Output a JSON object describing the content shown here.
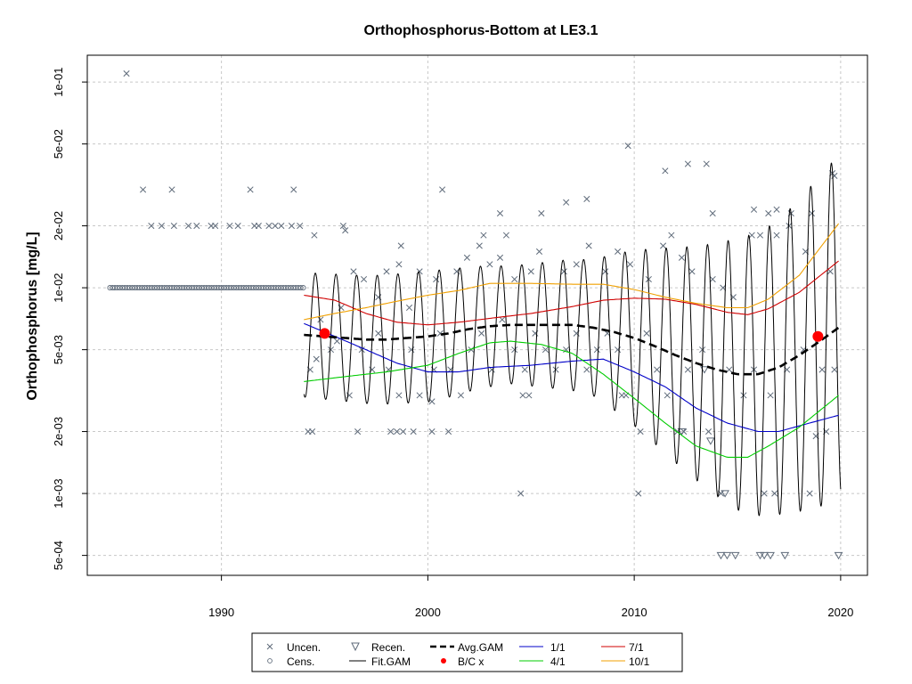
{
  "chart_data": {
    "type": "line",
    "title": "Orthophosphorus-Bottom at LE3.1",
    "xlabel": "",
    "ylabel": "Orthophosphorus [mg/L]",
    "y_scale": "log",
    "xlim": [
      1983.5,
      2021.3
    ],
    "ylim": [
      0.0004,
      0.135
    ],
    "x_ticks": [
      1990,
      2000,
      2010,
      2020
    ],
    "y_ticks": [
      0.1,
      0.05,
      0.02,
      0.01,
      0.005,
      0.002,
      0.001,
      0.0005
    ],
    "y_tick_labels": [
      "1e-01",
      "5e-02",
      "2e-02",
      "1e-02",
      "5e-03",
      "2e-03",
      "1e-03",
      "5e-04"
    ],
    "grid": true,
    "legend_placement": "bottom",
    "legend": {
      "uncen": "Uncen.",
      "cens": "Cens.",
      "recen": "Recen.",
      "fitgam": "Fit.GAM",
      "avggam": "Avg.GAM",
      "bc": "B/C x",
      "m1": "1/1",
      "m4": "4/1",
      "m7": "7/1",
      "m10": "10/1"
    },
    "colors": {
      "points": "#5f6b7a",
      "fit": "#000000",
      "avg": "#000000",
      "bc": "#ff0000",
      "m1": "#0000c8",
      "m4": "#00cc00",
      "m7": "#d00000",
      "m10": "#f0a000",
      "grid": "#c8c8c8"
    },
    "censored": {
      "x_start": 1984.6,
      "x_end": 1994.0,
      "step": 0.12,
      "value": 0.01
    },
    "uncensored": [
      [
        1985.4,
        0.11
      ],
      [
        1986.2,
        0.03
      ],
      [
        1987.6,
        0.03
      ],
      [
        1991.4,
        0.03
      ],
      [
        1993.5,
        0.03
      ],
      [
        2000.7,
        0.03
      ],
      [
        1986.6,
        0.02
      ],
      [
        1987.1,
        0.02
      ],
      [
        1987.7,
        0.02
      ],
      [
        1988.4,
        0.02
      ],
      [
        1988.8,
        0.02
      ],
      [
        1989.5,
        0.02
      ],
      [
        1989.7,
        0.02
      ],
      [
        1990.4,
        0.02
      ],
      [
        1990.8,
        0.02
      ],
      [
        1991.6,
        0.02
      ],
      [
        1991.8,
        0.02
      ],
      [
        1992.3,
        0.02
      ],
      [
        1992.6,
        0.02
      ],
      [
        1992.9,
        0.02
      ],
      [
        1993.4,
        0.02
      ],
      [
        1993.8,
        0.02
      ],
      [
        1994.5,
        0.018
      ],
      [
        1995.9,
        0.02
      ],
      [
        1996.0,
        0.019
      ],
      [
        1994.2,
        0.002
      ],
      [
        1994.4,
        0.002
      ],
      [
        1996.6,
        0.002
      ],
      [
        1998.2,
        0.002
      ],
      [
        1998.5,
        0.002
      ],
      [
        1998.8,
        0.002
      ],
      [
        1999.3,
        0.002
      ],
      [
        2000.2,
        0.002
      ],
      [
        2001.0,
        0.002
      ],
      [
        2000.2,
        0.0028
      ],
      [
        2004.9,
        0.003
      ],
      [
        2004.6,
        0.003
      ],
      [
        2009.6,
        0.003
      ],
      [
        2009.4,
        0.003
      ],
      [
        2010.3,
        0.002
      ],
      [
        2012.1,
        0.002
      ],
      [
        2012.4,
        0.002
      ],
      [
        2013.6,
        0.002
      ],
      [
        2004.5,
        0.001
      ],
      [
        2010.2,
        0.001
      ],
      [
        2014.2,
        0.001
      ],
      [
        2016.3,
        0.001
      ],
      [
        2016.8,
        0.001
      ],
      [
        2018.5,
        0.001
      ],
      [
        2019.3,
        0.002
      ],
      [
        2018.8,
        0.0019
      ],
      [
        1994.3,
        0.004
      ],
      [
        1994.6,
        0.0045
      ],
      [
        1995.3,
        0.005
      ],
      [
        1995.6,
        0.0055
      ],
      [
        1996.2,
        0.003
      ],
      [
        1996.8,
        0.005
      ],
      [
        1997.3,
        0.004
      ],
      [
        1997.6,
        0.006
      ],
      [
        1998.1,
        0.004
      ],
      [
        1998.6,
        0.003
      ],
      [
        1999.2,
        0.005
      ],
      [
        1999.6,
        0.003
      ],
      [
        2000.3,
        0.004
      ],
      [
        2000.6,
        0.006
      ],
      [
        2001.1,
        0.004
      ],
      [
        2001.6,
        0.003
      ],
      [
        2002.1,
        0.005
      ],
      [
        2002.6,
        0.006
      ],
      [
        2003.1,
        0.004
      ],
      [
        2003.6,
        0.007
      ],
      [
        2004.2,
        0.005
      ],
      [
        2004.7,
        0.004
      ],
      [
        2005.2,
        0.006
      ],
      [
        2005.7,
        0.005
      ],
      [
        2006.2,
        0.004
      ],
      [
        2006.7,
        0.005
      ],
      [
        2007.2,
        0.006
      ],
      [
        2007.7,
        0.004
      ],
      [
        2008.2,
        0.005
      ],
      [
        2008.7,
        0.006
      ],
      [
        2009.2,
        0.005
      ],
      [
        2010.6,
        0.006
      ],
      [
        2011.1,
        0.004
      ],
      [
        2011.6,
        0.003
      ],
      [
        2012.6,
        0.004
      ],
      [
        2013.3,
        0.005
      ],
      [
        2014.6,
        0.004
      ],
      [
        2015.3,
        0.003
      ],
      [
        2015.8,
        0.004
      ],
      [
        2016.6,
        0.003
      ],
      [
        2017.4,
        0.004
      ],
      [
        2018.2,
        0.005
      ],
      [
        2019.1,
        0.004
      ],
      [
        2019.7,
        0.004
      ],
      [
        1994.8,
        0.007
      ],
      [
        1995.8,
        0.008
      ],
      [
        1996.4,
        0.012
      ],
      [
        1996.9,
        0.011
      ],
      [
        1997.6,
        0.009
      ],
      [
        1998.0,
        0.012
      ],
      [
        1998.6,
        0.013
      ],
      [
        1999.1,
        0.008
      ],
      [
        1999.6,
        0.012
      ],
      [
        2000.4,
        0.011
      ],
      [
        2001.4,
        0.012
      ],
      [
        2001.9,
        0.014
      ],
      [
        2002.5,
        0.016
      ],
      [
        2003.0,
        0.013
      ],
      [
        2003.5,
        0.014
      ],
      [
        2004.2,
        0.011
      ],
      [
        2005.0,
        0.012
      ],
      [
        2005.4,
        0.015
      ],
      [
        2006.6,
        0.012
      ],
      [
        2007.2,
        0.013
      ],
      [
        2007.8,
        0.016
      ],
      [
        2008.6,
        0.012
      ],
      [
        2009.2,
        0.015
      ],
      [
        2009.8,
        0.013
      ],
      [
        2010.7,
        0.011
      ],
      [
        2011.4,
        0.016
      ],
      [
        2011.8,
        0.018
      ],
      [
        2012.3,
        0.014
      ],
      [
        2012.8,
        0.012
      ],
      [
        2013.8,
        0.011
      ],
      [
        2014.3,
        0.01
      ],
      [
        2014.8,
        0.009
      ],
      [
        2015.7,
        0.018
      ],
      [
        2016.1,
        0.018
      ],
      [
        2016.9,
        0.018
      ],
      [
        2017.5,
        0.02
      ],
      [
        2018.3,
        0.015
      ],
      [
        2019.5,
        0.012
      ],
      [
        1998.7,
        0.016
      ],
      [
        2002.7,
        0.018
      ],
      [
        2003.5,
        0.023
      ],
      [
        2003.8,
        0.018
      ],
      [
        2005.5,
        0.023
      ],
      [
        2006.7,
        0.026
      ],
      [
        2007.7,
        0.027
      ],
      [
        2009.7,
        0.049
      ],
      [
        2011.5,
        0.037
      ],
      [
        2012.6,
        0.04
      ],
      [
        2013.5,
        0.04
      ],
      [
        2013.8,
        0.023
      ],
      [
        2015.8,
        0.024
      ],
      [
        2016.5,
        0.023
      ],
      [
        2016.9,
        0.024
      ],
      [
        2017.6,
        0.023
      ],
      [
        2018.6,
        0.023
      ],
      [
        2019.6,
        0.036
      ],
      [
        2019.7,
        0.035
      ]
    ],
    "recensored": [
      [
        2014.2,
        0.0005
      ],
      [
        2014.5,
        0.0005
      ],
      [
        2014.9,
        0.0005
      ],
      [
        2016.1,
        0.0005
      ],
      [
        2016.3,
        0.0005
      ],
      [
        2016.6,
        0.0005
      ],
      [
        2017.3,
        0.0005
      ],
      [
        2019.9,
        0.0005
      ],
      [
        2012.3,
        0.002
      ],
      [
        2013.4,
        0.004
      ],
      [
        2013.7,
        0.0018
      ],
      [
        2014.4,
        0.001
      ]
    ],
    "avg_gam": [
      [
        1994.0,
        0.0059
      ],
      [
        1995.0,
        0.0058
      ],
      [
        1996.0,
        0.0057
      ],
      [
        1997.0,
        0.0056
      ],
      [
        1998.0,
        0.0056
      ],
      [
        1999.0,
        0.0057
      ],
      [
        2000.0,
        0.0058
      ],
      [
        2001.0,
        0.006
      ],
      [
        2002.0,
        0.0063
      ],
      [
        2003.0,
        0.0065
      ],
      [
        2004.0,
        0.0066
      ],
      [
        2005.0,
        0.0066
      ],
      [
        2006.0,
        0.0066
      ],
      [
        2007.0,
        0.0066
      ],
      [
        2008.0,
        0.0064
      ],
      [
        2009.0,
        0.0061
      ],
      [
        2010.0,
        0.0057
      ],
      [
        2011.0,
        0.0052
      ],
      [
        2012.0,
        0.0047
      ],
      [
        2013.0,
        0.0043
      ],
      [
        2014.0,
        0.004
      ],
      [
        2015.0,
        0.0038
      ],
      [
        2016.0,
        0.0038
      ],
      [
        2017.0,
        0.0041
      ],
      [
        2018.0,
        0.0047
      ],
      [
        2019.0,
        0.0055
      ],
      [
        2019.9,
        0.0064
      ]
    ],
    "fit_gam": {
      "year_start": 1994.0,
      "year_end": 2020.0,
      "peak_month_fraction": 0.55,
      "amplitude": [
        [
          1994.0,
          0.55
        ],
        [
          2000.0,
          0.58
        ],
        [
          2004.0,
          0.52
        ],
        [
          2008.0,
          0.6
        ],
        [
          2012.0,
          0.95
        ],
        [
          2015.0,
          1.2
        ],
        [
          2017.0,
          1.3
        ],
        [
          2019.5,
          1.5
        ]
      ]
    },
    "bc_points": [
      [
        1995.0,
        0.006
      ],
      [
        2018.9,
        0.0058
      ]
    ],
    "series": [
      {
        "name": "1/1",
        "values": [
          [
            1994.0,
            0.0067
          ],
          [
            1995.5,
            0.0058
          ],
          [
            1997.0,
            0.005
          ],
          [
            1998.5,
            0.0043
          ],
          [
            2000.0,
            0.0039
          ],
          [
            2001.5,
            0.0039
          ],
          [
            2003.0,
            0.0041
          ],
          [
            2005.0,
            0.0042
          ],
          [
            2007.0,
            0.0044
          ],
          [
            2008.5,
            0.0045
          ],
          [
            2010.0,
            0.0039
          ],
          [
            2011.5,
            0.0033
          ],
          [
            2013.0,
            0.0026
          ],
          [
            2014.5,
            0.0022
          ],
          [
            2016.0,
            0.002
          ],
          [
            2017.0,
            0.002
          ],
          [
            2018.5,
            0.0022
          ],
          [
            2019.9,
            0.0024
          ]
        ]
      },
      {
        "name": "4/1",
        "values": [
          [
            1994.0,
            0.0035
          ],
          [
            1996.0,
            0.0037
          ],
          [
            1998.0,
            0.0039
          ],
          [
            2000.0,
            0.0042
          ],
          [
            2001.5,
            0.0048
          ],
          [
            2003.0,
            0.0054
          ],
          [
            2004.0,
            0.0055
          ],
          [
            2005.5,
            0.0053
          ],
          [
            2007.0,
            0.0048
          ],
          [
            2008.5,
            0.0038
          ],
          [
            2010.0,
            0.0029
          ],
          [
            2011.5,
            0.0022
          ],
          [
            2013.0,
            0.0017
          ],
          [
            2014.5,
            0.0015
          ],
          [
            2015.5,
            0.0015
          ],
          [
            2016.5,
            0.0017
          ],
          [
            2018.0,
            0.0021
          ],
          [
            2019.9,
            0.003
          ]
        ]
      },
      {
        "name": "7/1",
        "values": [
          [
            1994.0,
            0.0092
          ],
          [
            1995.5,
            0.0087
          ],
          [
            1997.0,
            0.0075
          ],
          [
            1998.5,
            0.0068
          ],
          [
            2000.0,
            0.0066
          ],
          [
            2001.5,
            0.0068
          ],
          [
            2003.0,
            0.0071
          ],
          [
            2005.0,
            0.0075
          ],
          [
            2007.0,
            0.0081
          ],
          [
            2008.5,
            0.0087
          ],
          [
            2010.0,
            0.0089
          ],
          [
            2011.5,
            0.0088
          ],
          [
            2013.0,
            0.0083
          ],
          [
            2014.5,
            0.0076
          ],
          [
            2015.5,
            0.0074
          ],
          [
            2016.5,
            0.0079
          ],
          [
            2018.0,
            0.0095
          ],
          [
            2019.9,
            0.0135
          ]
        ]
      },
      {
        "name": "10/1",
        "values": [
          [
            1994.0,
            0.007
          ],
          [
            1995.5,
            0.0075
          ],
          [
            1997.0,
            0.008
          ],
          [
            1998.5,
            0.0086
          ],
          [
            2000.0,
            0.0092
          ],
          [
            2001.5,
            0.0097
          ],
          [
            2003.0,
            0.0105
          ],
          [
            2005.0,
            0.0105
          ],
          [
            2007.0,
            0.0104
          ],
          [
            2008.5,
            0.0104
          ],
          [
            2010.0,
            0.0098
          ],
          [
            2011.5,
            0.009
          ],
          [
            2013.0,
            0.0084
          ],
          [
            2014.5,
            0.008
          ],
          [
            2015.5,
            0.008
          ],
          [
            2016.5,
            0.0088
          ],
          [
            2018.0,
            0.0115
          ],
          [
            2019.9,
            0.0205
          ]
        ]
      }
    ]
  }
}
